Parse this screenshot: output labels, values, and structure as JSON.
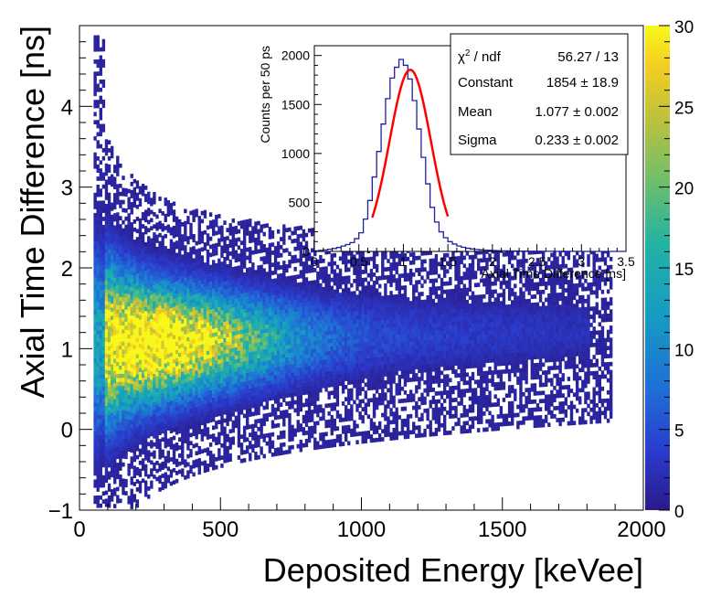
{
  "chart_data": [
    {
      "type": "heatmap",
      "xlabel": "Deposited Energy [keVee]",
      "ylabel": "Axial Time Difference [ns]",
      "xlim": [
        0,
        2000
      ],
      "ylim": [
        -1,
        5
      ],
      "x_ticks": [
        0,
        500,
        1000,
        1500,
        2000
      ],
      "y_ticks": [
        -1,
        0,
        1,
        2,
        3,
        4
      ],
      "colorbar": {
        "min": 0,
        "max": 30,
        "ticks": [
          0,
          5,
          10,
          15,
          20,
          25,
          30
        ]
      },
      "distribution": {
        "description_energy_range_keVee": [
          50,
          1880
        ],
        "core_peak_energy_keVee": 250,
        "core_peak_time_ns": 1.05,
        "peak_count": 28
      }
    },
    {
      "type": "histogram",
      "xlabel": "Axial Time Difference [ns]",
      "ylabel": "Counts per 50 ps",
      "xlim": [
        0,
        3.5
      ],
      "ylim": [
        0,
        2100
      ],
      "x_ticks": [
        0,
        0.5,
        1,
        1.5,
        2,
        2.5,
        3,
        3.5
      ],
      "x_tick_labels": [
        "0",
        "0.5",
        "1",
        "1.5",
        "2",
        "2.5",
        "3",
        "3.5"
      ],
      "y_ticks": [
        0,
        500,
        1000,
        1500,
        2000
      ],
      "bin_width": 0.05,
      "bin_start": 0,
      "values": [
        5,
        10,
        15,
        22,
        30,
        40,
        55,
        70,
        90,
        130,
        190,
        330,
        520,
        760,
        1020,
        1300,
        1560,
        1770,
        1880,
        1960,
        1900,
        1760,
        1540,
        1250,
        960,
        690,
        450,
        300,
        200,
        140,
        100,
        75,
        55,
        42,
        32,
        25,
        20,
        16,
        13,
        11,
        9,
        7,
        6,
        5,
        4,
        4,
        3,
        3,
        2,
        2,
        2,
        1,
        1,
        1,
        1,
        1,
        1,
        1,
        1,
        1,
        0,
        0,
        0,
        0,
        0,
        0,
        0,
        0,
        0,
        0
      ],
      "fit": {
        "function": "gaussian",
        "constant": 1854,
        "mean": 1.077,
        "sigma": 0.233,
        "range": [
          0.65,
          1.5
        ],
        "color": "#ff0000"
      },
      "hist_color": "#1f1f9f",
      "stats": [
        {
          "label_main": "χ",
          "label_sup": "2",
          "label_rest": " / ndf",
          "value": "56.27 / 13"
        },
        {
          "label_main": "Constant",
          "value": "1854 ± 18.9"
        },
        {
          "label_main": "Mean",
          "value": "1.077 ± 0.002"
        },
        {
          "label_main": "Sigma",
          "value": "0.233 ± 0.002"
        }
      ]
    }
  ]
}
